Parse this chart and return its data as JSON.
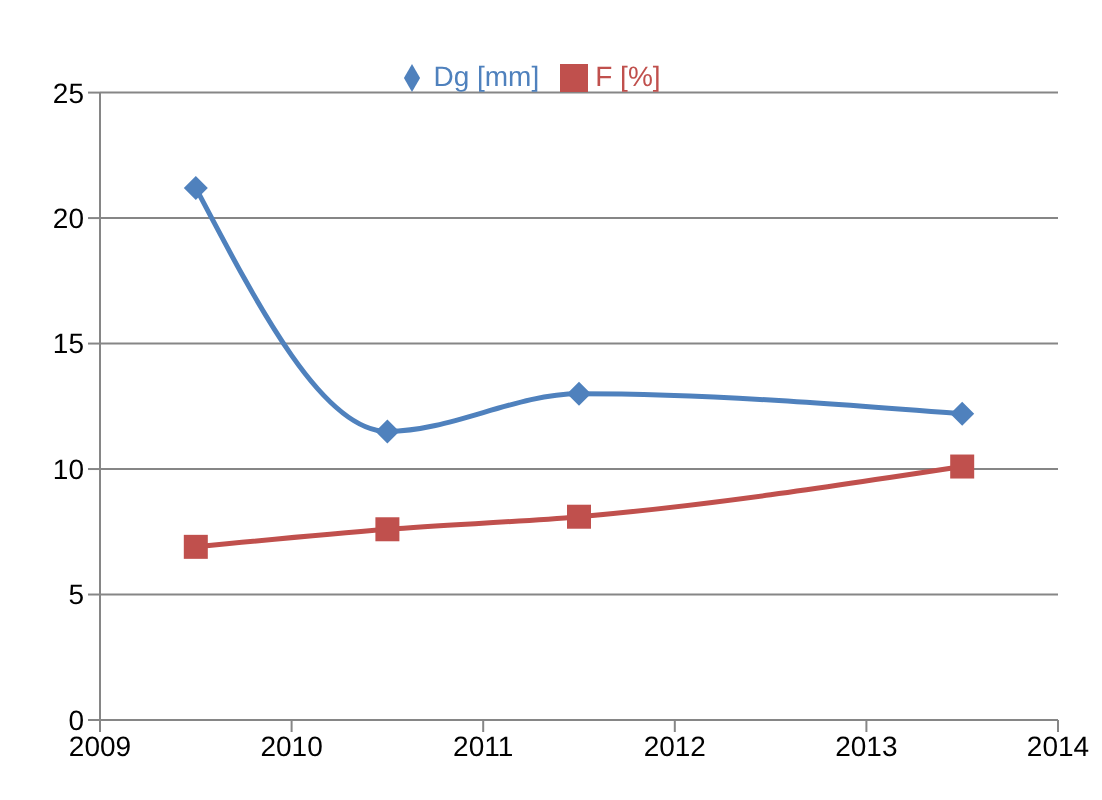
{
  "chart_data": {
    "type": "line",
    "x": [
      2009.5,
      2010.5,
      2011.5,
      2013.5
    ],
    "series": [
      {
        "name": "Dg [mm]",
        "color": "#4f81bd",
        "marker": "diamond",
        "values": [
          21.2,
          11.5,
          13.0,
          12.2
        ]
      },
      {
        "name": "F [%]",
        "color": "#c0504d",
        "marker": "square",
        "values": [
          6.9,
          7.6,
          8.1,
          10.1
        ]
      }
    ],
    "xlim": [
      2009,
      2014
    ],
    "xticks": [
      2009,
      2010,
      2011,
      2012,
      2013,
      2014
    ],
    "ylim": [
      0,
      25
    ],
    "yticks": [
      0,
      5,
      10,
      15,
      20,
      25
    ],
    "grid": "y",
    "legend": "top"
  }
}
